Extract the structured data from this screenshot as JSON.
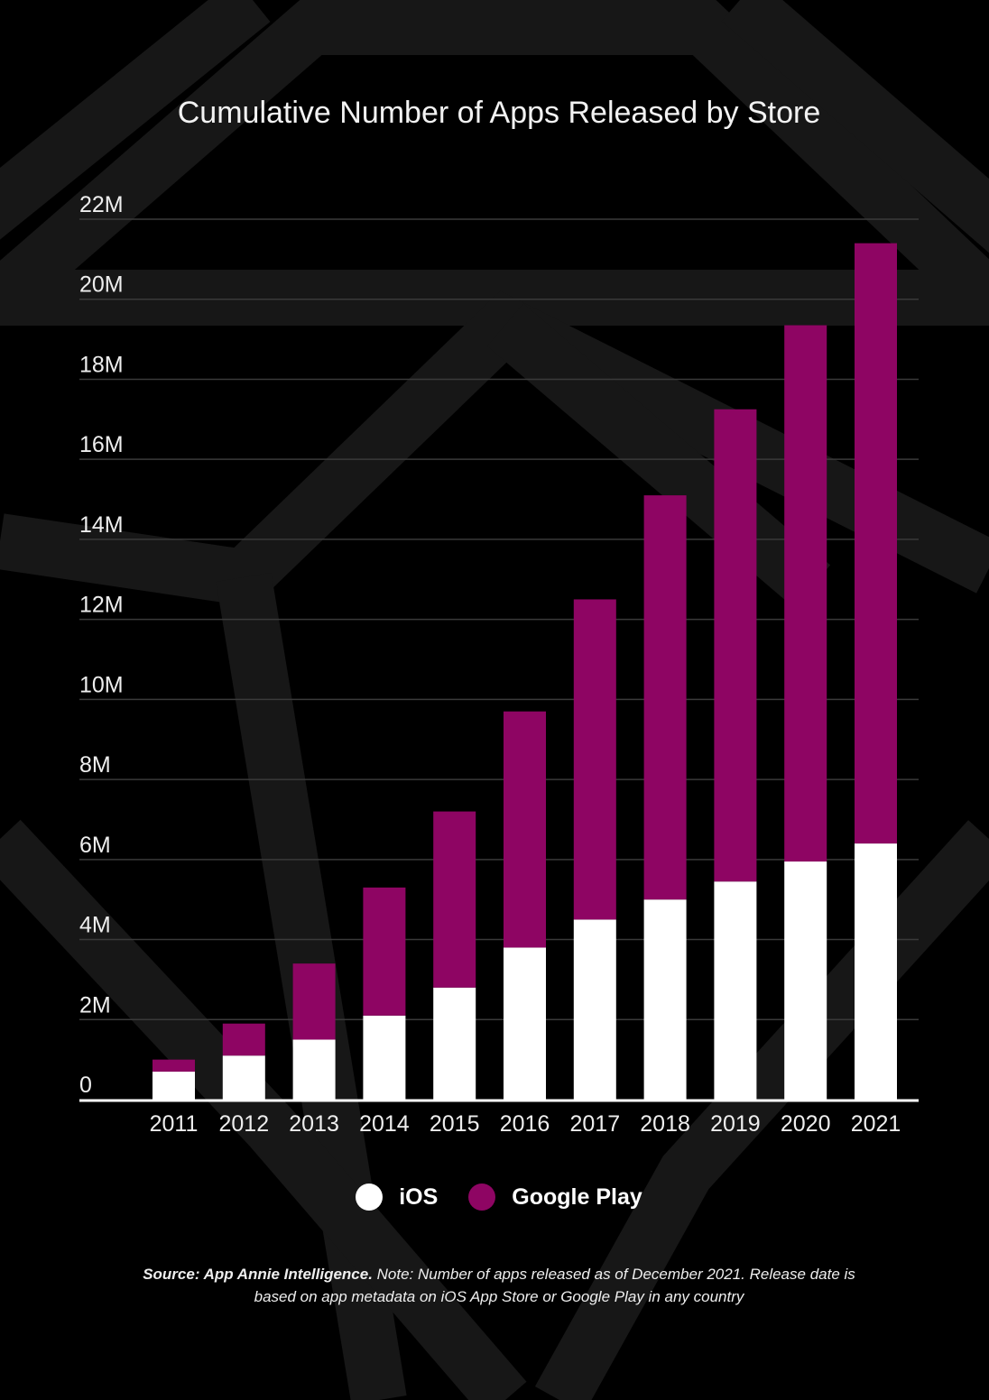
{
  "colors": {
    "ios": "#ffffff",
    "google_play": "#8e0563",
    "grid": "#3a3a3a",
    "background": "#000000"
  },
  "chart_data": {
    "type": "bar",
    "stacked": true,
    "title": "Cumulative Number of Apps Released by Store",
    "xlabel": "",
    "ylabel": "",
    "ylim": [
      0,
      22000000
    ],
    "y_ticks": [
      0,
      2000000,
      4000000,
      6000000,
      8000000,
      10000000,
      12000000,
      14000000,
      16000000,
      18000000,
      20000000,
      22000000
    ],
    "y_tick_labels": [
      "0",
      "2M",
      "4M",
      "6M",
      "8M",
      "10M",
      "12M",
      "14M",
      "16M",
      "18M",
      "20M",
      "22M"
    ],
    "categories": [
      "2011",
      "2012",
      "2013",
      "2014",
      "2015",
      "2016",
      "2017",
      "2018",
      "2019",
      "2020",
      "2021"
    ],
    "series": [
      {
        "name": "iOS",
        "values": [
          700000,
          1100000,
          1500000,
          2100000,
          2800000,
          3800000,
          4500000,
          5000000,
          5450000,
          5950000,
          6400000
        ]
      },
      {
        "name": "Google Play",
        "values": [
          300000,
          800000,
          1900000,
          3200000,
          4400000,
          5900000,
          8000000,
          10100000,
          11800000,
          13400000,
          15000000
        ]
      }
    ],
    "grid": true,
    "legend": "bottom-center"
  },
  "legend": {
    "ios": "iOS",
    "google_play": "Google Play"
  },
  "note": {
    "source": "Source: App Annie Intelligence.",
    "text": " Note: Number of apps released as of December 2021. Release date is based on app metadata on iOS App Store or Google Play in any country"
  }
}
